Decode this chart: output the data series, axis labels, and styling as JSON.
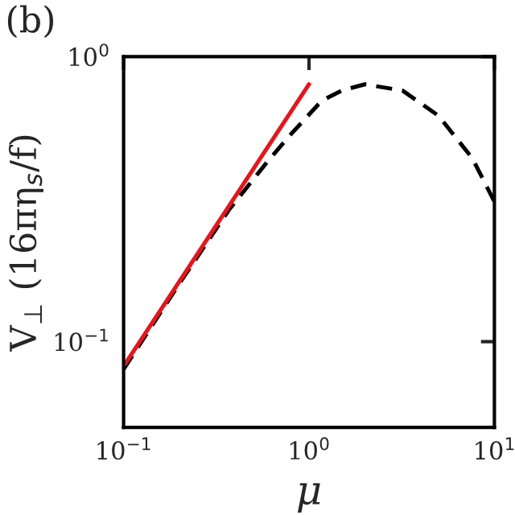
{
  "chart_data": {
    "type": "line",
    "log": "xy",
    "grid": false,
    "legend": false,
    "marker": "none",
    "xlabel": "μ",
    "ylabel": "V$_{⊥}$ (16πη$_{s}$/f)",
    "annotations": [
      "(b)"
    ],
    "xlim": [
      0.1,
      10
    ],
    "ylim": [
      0.05,
      1
    ],
    "xticks": [
      {
        "value": 0.1,
        "label": "10$^{−1}$"
      },
      {
        "value": 1,
        "label": "10$^{0}$"
      },
      {
        "value": 10,
        "label": "10$^{1}$"
      }
    ],
    "yticks": [
      {
        "value": 0.1,
        "label": "10$^{−1}$"
      },
      {
        "value": 1,
        "label": "10$^{0}$"
      }
    ],
    "series": [
      {
        "color": "#000000",
        "line_style": "dashed",
        "x": [
          0.1,
          0.2,
          0.37,
          0.6,
          0.79,
          1.17,
          1.5,
          2,
          3.2,
          5,
          7.6,
          10
        ],
        "values": [
          0.08,
          0.16,
          0.29,
          0.43,
          0.53,
          0.7,
          0.76,
          0.8,
          0.76,
          0.62,
          0.44,
          0.31
        ]
      },
      {
        "color": "#e8141c",
        "line_style": "solid",
        "x": [
          0.1,
          1
        ],
        "values": [
          0.082,
          0.8
        ]
      }
    ]
  }
}
